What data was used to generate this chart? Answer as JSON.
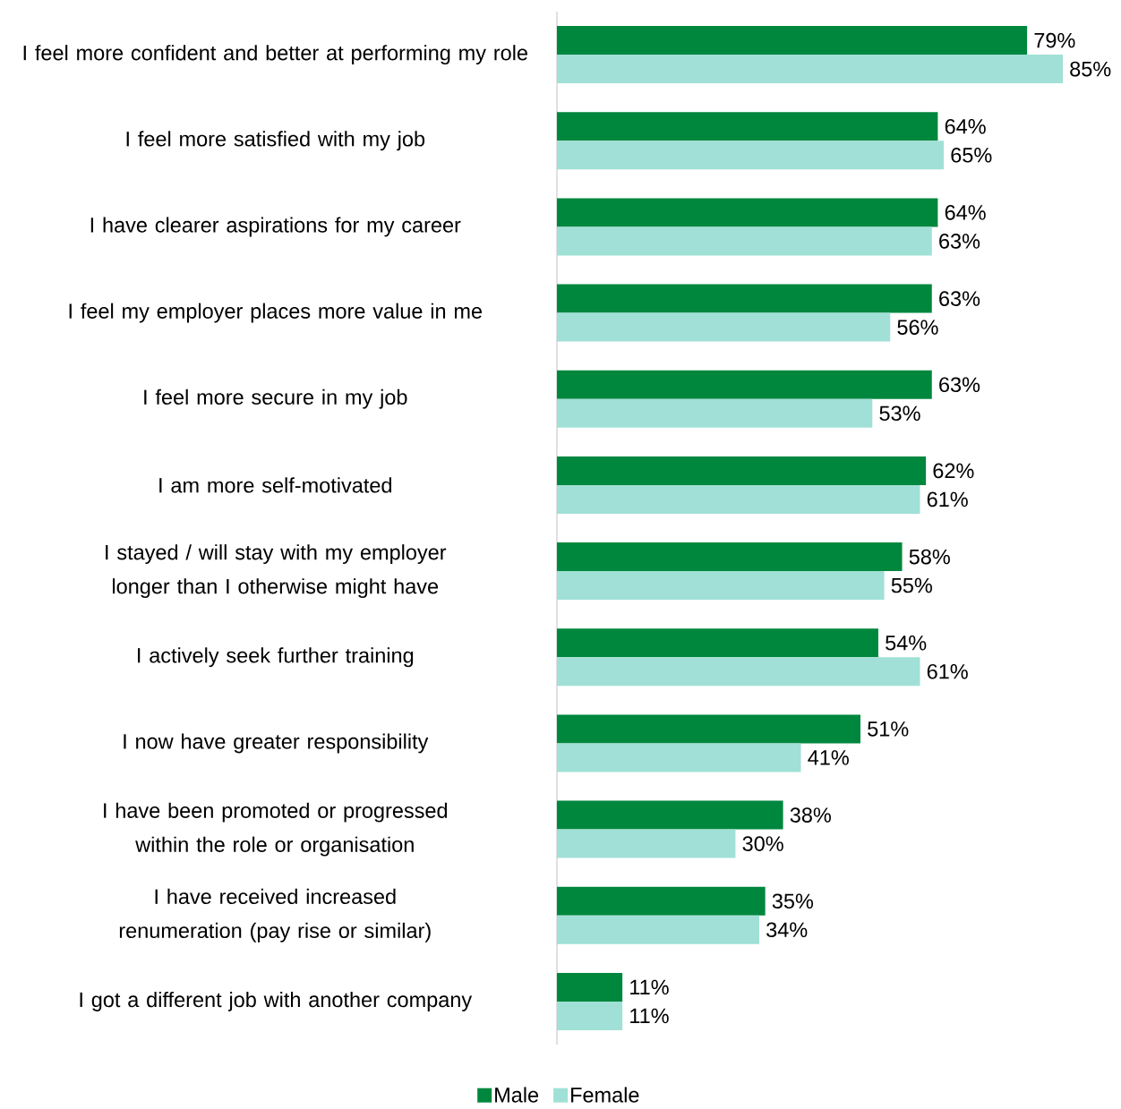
{
  "chart_data": {
    "type": "bar",
    "orientation": "horizontal",
    "legend": "bottom",
    "categories": [
      "I feel more confident and better at performing my role",
      "I feel more satisfied with my job",
      "I have clearer aspirations for my career",
      "I feel my employer places more value in me",
      "I feel more secure in my job",
      "I am more self-motivated",
      "I stayed / will stay with my employer longer than I otherwise might have",
      "I actively seek further training",
      "I now have greater responsibility",
      "I have been promoted or progressed within the role or organisation",
      "I have received increased renumeration (pay rise or similar)",
      "I got a different job with another company"
    ],
    "series": [
      {
        "name": "Male",
        "color": "#00873e",
        "values": [
          79,
          64,
          64,
          63,
          63,
          62,
          58,
          54,
          51,
          38,
          35,
          11
        ],
        "value_labels": [
          "79%",
          "64%",
          "64%",
          "63%",
          "63%",
          "62%",
          "58%",
          "54%",
          "51%",
          "38%",
          "35%",
          "11%"
        ]
      },
      {
        "name": "Female",
        "color": "#a0e0d6",
        "values": [
          85,
          65,
          63,
          56,
          53,
          61,
          55,
          61,
          41,
          30,
          34,
          11
        ],
        "value_labels": [
          "85%",
          "65%",
          "63%",
          "56%",
          "53%",
          "61%",
          "55%",
          "61%",
          "41%",
          "30%",
          "34%",
          "11%"
        ]
      }
    ]
  }
}
